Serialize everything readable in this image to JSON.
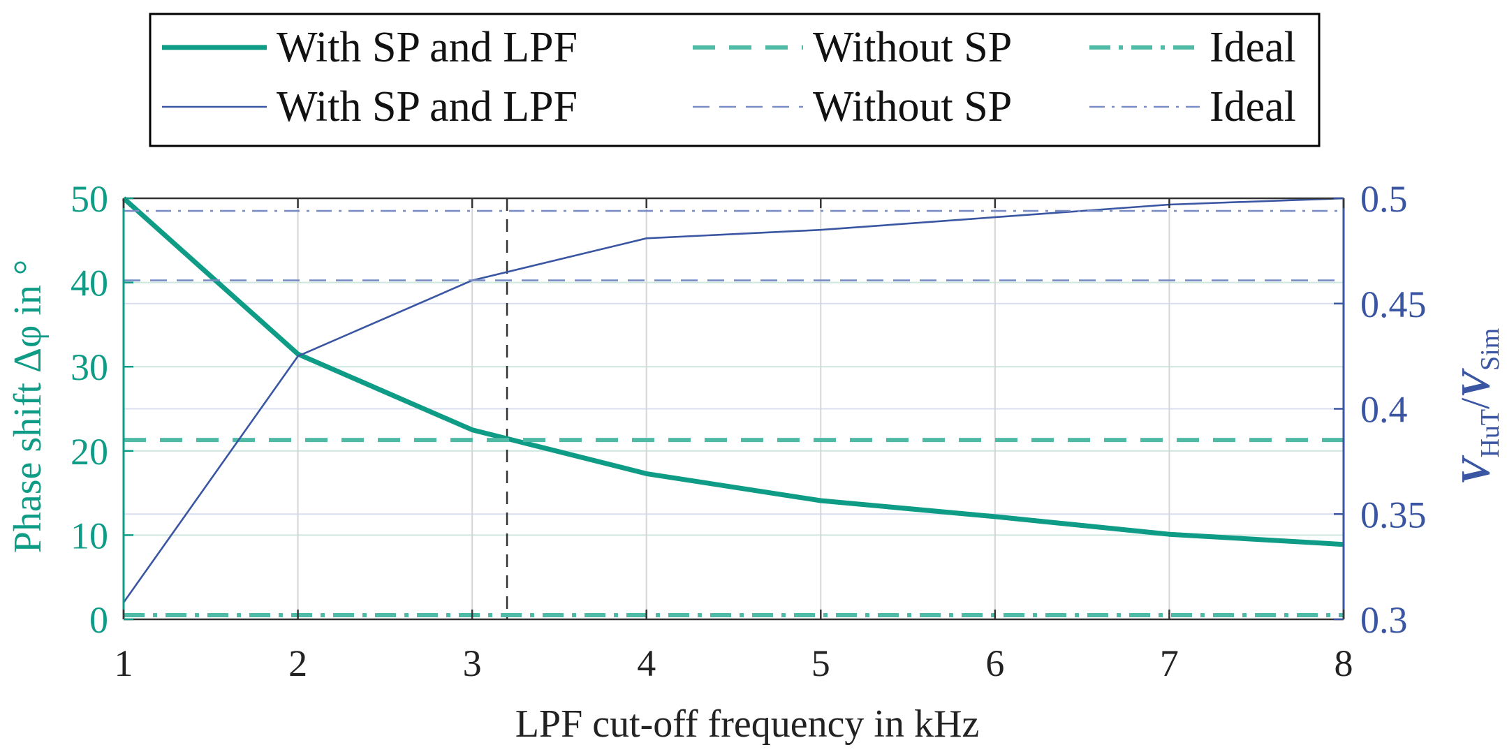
{
  "colors": {
    "teal": "#0f9c86",
    "teal_light": "#4fbaa6",
    "blue": "#3a56a2",
    "blue_light": "#7a8cc4",
    "axis_dark": "#333333",
    "grid_teal": "#cde6df",
    "grid_gray": "#d6d6d6"
  },
  "chart_data": {
    "type": "line",
    "x": [
      1,
      2,
      3,
      4,
      5,
      6,
      7,
      8
    ],
    "xlabel": "LPF cut-off frequency in kHz",
    "xlim": [
      1,
      8
    ],
    "xticks": [
      "1",
      "2",
      "3",
      "4",
      "5",
      "6",
      "7",
      "8"
    ],
    "ylabel_left": "Phase shift Δφ in °",
    "ylim_left": [
      0,
      50
    ],
    "yticks_left": [
      "0",
      "10",
      "20",
      "30",
      "40",
      "50"
    ],
    "ylabel_right_main": "V",
    "ylabel_right_sub1": "HuT",
    "ylabel_right_slash": "/",
    "ylabel_right_main2": "V",
    "ylabel_right_sub2": "Sim",
    "ylim_right": [
      0.3,
      0.5
    ],
    "yticks_right": [
      "0.3",
      "0.35",
      "0.4",
      "0.45",
      "0.5"
    ],
    "marker_line_x": 3.2,
    "grid": true,
    "legend_position": "top-center",
    "series": [
      {
        "name": "With SP and LPF",
        "axis": "left",
        "style": "solid-thick",
        "color": "teal",
        "values": [
          50,
          31.5,
          22.5,
          17.3,
          14.1,
          12.2,
          10.1,
          8.9
        ]
      },
      {
        "name": "Without SP",
        "axis": "left",
        "style": "dashed-thick",
        "color": "teal_light",
        "values": [
          21.3,
          21.3,
          21.3,
          21.3,
          21.3,
          21.3,
          21.3,
          21.3
        ]
      },
      {
        "name": "Ideal",
        "axis": "left",
        "style": "dashdot-thick",
        "color": "teal_light",
        "values": [
          0.5,
          0.5,
          0.5,
          0.5,
          0.5,
          0.5,
          0.5,
          0.5
        ]
      },
      {
        "name": "With SP and LPF",
        "axis": "right",
        "style": "solid-thin",
        "color": "blue",
        "values": [
          0.308,
          0.425,
          0.461,
          0.481,
          0.485,
          0.491,
          0.497,
          0.5
        ]
      },
      {
        "name": "Without SP",
        "axis": "right",
        "style": "dashed-thin",
        "color": "blue_light",
        "values": [
          0.461,
          0.461,
          0.461,
          0.461,
          0.461,
          0.461,
          0.461,
          0.461
        ]
      },
      {
        "name": "Ideal",
        "axis": "right",
        "style": "dashdot-thin",
        "color": "blue_light",
        "values": [
          0.494,
          0.494,
          0.494,
          0.494,
          0.494,
          0.494,
          0.494,
          0.494
        ]
      }
    ]
  }
}
